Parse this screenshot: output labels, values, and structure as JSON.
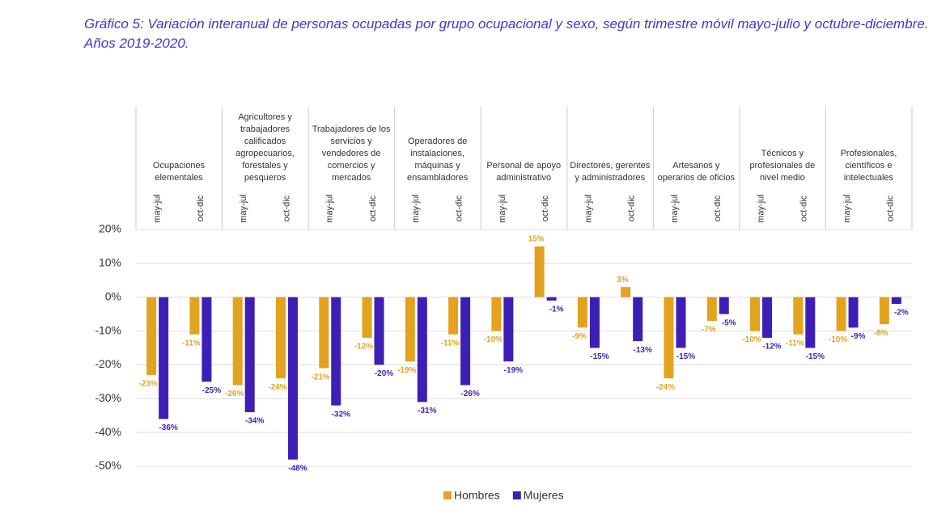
{
  "chart_data": {
    "type": "bar",
    "title": "Gráfico 5: Variación interanual de personas ocupadas por grupo ocupacional y sexo, según trimestre móvil mayo-julio y octubre-diciembre. Años 2019-2020.",
    "groups": [
      "Ocupaciones elementales",
      "Agricultores y trabajadores calificados agropecuarios, forestales y pesqueros",
      "Trabajadores de los servicios y vendedores de comercios y mercados",
      "Operadores de instalaciones, máquinas y ensambladores",
      "Personal de apoyo administrativo",
      "Directores, gerentes y administradores",
      "Artesanos y operarios de oficios",
      "Técnicos y profesionales de nivel medio",
      "Profesionales, científicos e intelectuales"
    ],
    "categories": [
      "may-jul",
      "oct-dic",
      "may-jul",
      "oct-dic",
      "may-jul",
      "oct-dic",
      "may-jul",
      "oct-dic",
      "may-jul",
      "oct-dic",
      "may-jul",
      "oct-dic",
      "may-jul",
      "oct-dic",
      "may-jul",
      "oct-dic",
      "may-jul",
      "oct-dic"
    ],
    "series": [
      {
        "name": "Hombres",
        "color": "#e3a31f",
        "values": [
          -23,
          -11,
          -26,
          -24,
          -21,
          -12,
          -19,
          -11,
          -10,
          15,
          -9,
          3,
          -24,
          -7,
          -10,
          -11,
          -10,
          -8
        ],
        "value_labels": [
          "-23%",
          "-11%",
          "-26%",
          "-24%",
          "-21%",
          "-12%",
          "-19%",
          "-11%",
          "-10%",
          "15%",
          "-9%",
          "3%",
          "-24%",
          "-7%",
          "-10%",
          "-11%",
          "-10%",
          "-8%"
        ]
      },
      {
        "name": "Mujeres",
        "color": "#3d1fb5",
        "values": [
          -36,
          -25,
          -34,
          -48,
          -32,
          -20,
          -31,
          -26,
          -19,
          -1,
          -15,
          -13,
          -15,
          -5,
          -12,
          -15,
          -9,
          -2
        ],
        "value_labels": [
          "-36%",
          "-25%",
          "-34%",
          "-48%",
          "-32%",
          "-20%",
          "-31%",
          "-26%",
          "-19%",
          "-1%",
          "-15%",
          "-13%",
          "-15%",
          "-5%",
          "-12%",
          "-15%",
          "-9%",
          "-2%"
        ]
      }
    ],
    "ylim": [
      -50,
      20
    ],
    "yticks": [
      {
        "value": 20,
        "label": "20%"
      },
      {
        "value": 10,
        "label": "10%"
      },
      {
        "value": 0,
        "label": "0%"
      },
      {
        "value": -10,
        "label": "-10%"
      },
      {
        "value": -20,
        "label": "-20%"
      },
      {
        "value": -30,
        "label": "-30%"
      },
      {
        "value": -40,
        "label": "-40%"
      },
      {
        "value": -50,
        "label": "-50%"
      }
    ],
    "grid": true,
    "legend": "bottom"
  }
}
